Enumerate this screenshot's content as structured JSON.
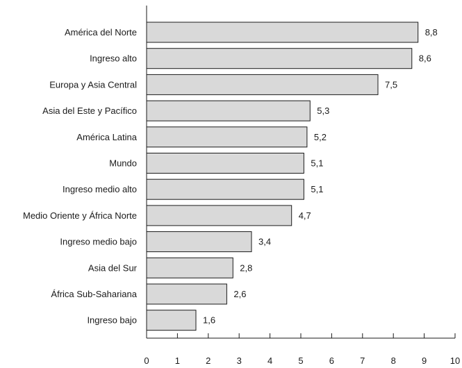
{
  "chart_data": {
    "type": "bar",
    "orientation": "horizontal",
    "categories": [
      "América del Norte",
      "Ingreso alto",
      "Europa y Asia Central",
      "Asia del Este y Pacífico",
      "América Latina",
      "Mundo",
      "Ingreso medio alto",
      "Medio Oriente y África Norte",
      "Ingreso medio bajo",
      "Asia del Sur",
      "África Sub-Sahariana",
      "Ingreso bajo"
    ],
    "values": [
      8.8,
      8.6,
      7.5,
      5.3,
      5.2,
      5.1,
      5.1,
      4.7,
      3.4,
      2.8,
      2.6,
      1.6
    ],
    "value_labels": [
      "8,8",
      "8,6",
      "7,5",
      "5,3",
      "5,2",
      "5,1",
      "5,1",
      "4,7",
      "3,4",
      "2,8",
      "2,6",
      "1,6"
    ],
    "xlim": [
      0,
      10
    ],
    "xticks": [
      0,
      1,
      2,
      3,
      4,
      5,
      6,
      7,
      8,
      9,
      10
    ],
    "title": "",
    "xlabel": "",
    "ylabel": "",
    "grid": false,
    "legend": "none",
    "colors": {
      "bar_fill": "#d9d9d9",
      "bar_stroke": "#1a1a1a",
      "axis": "#1a1a1a",
      "text": "#1a1a1a"
    }
  }
}
